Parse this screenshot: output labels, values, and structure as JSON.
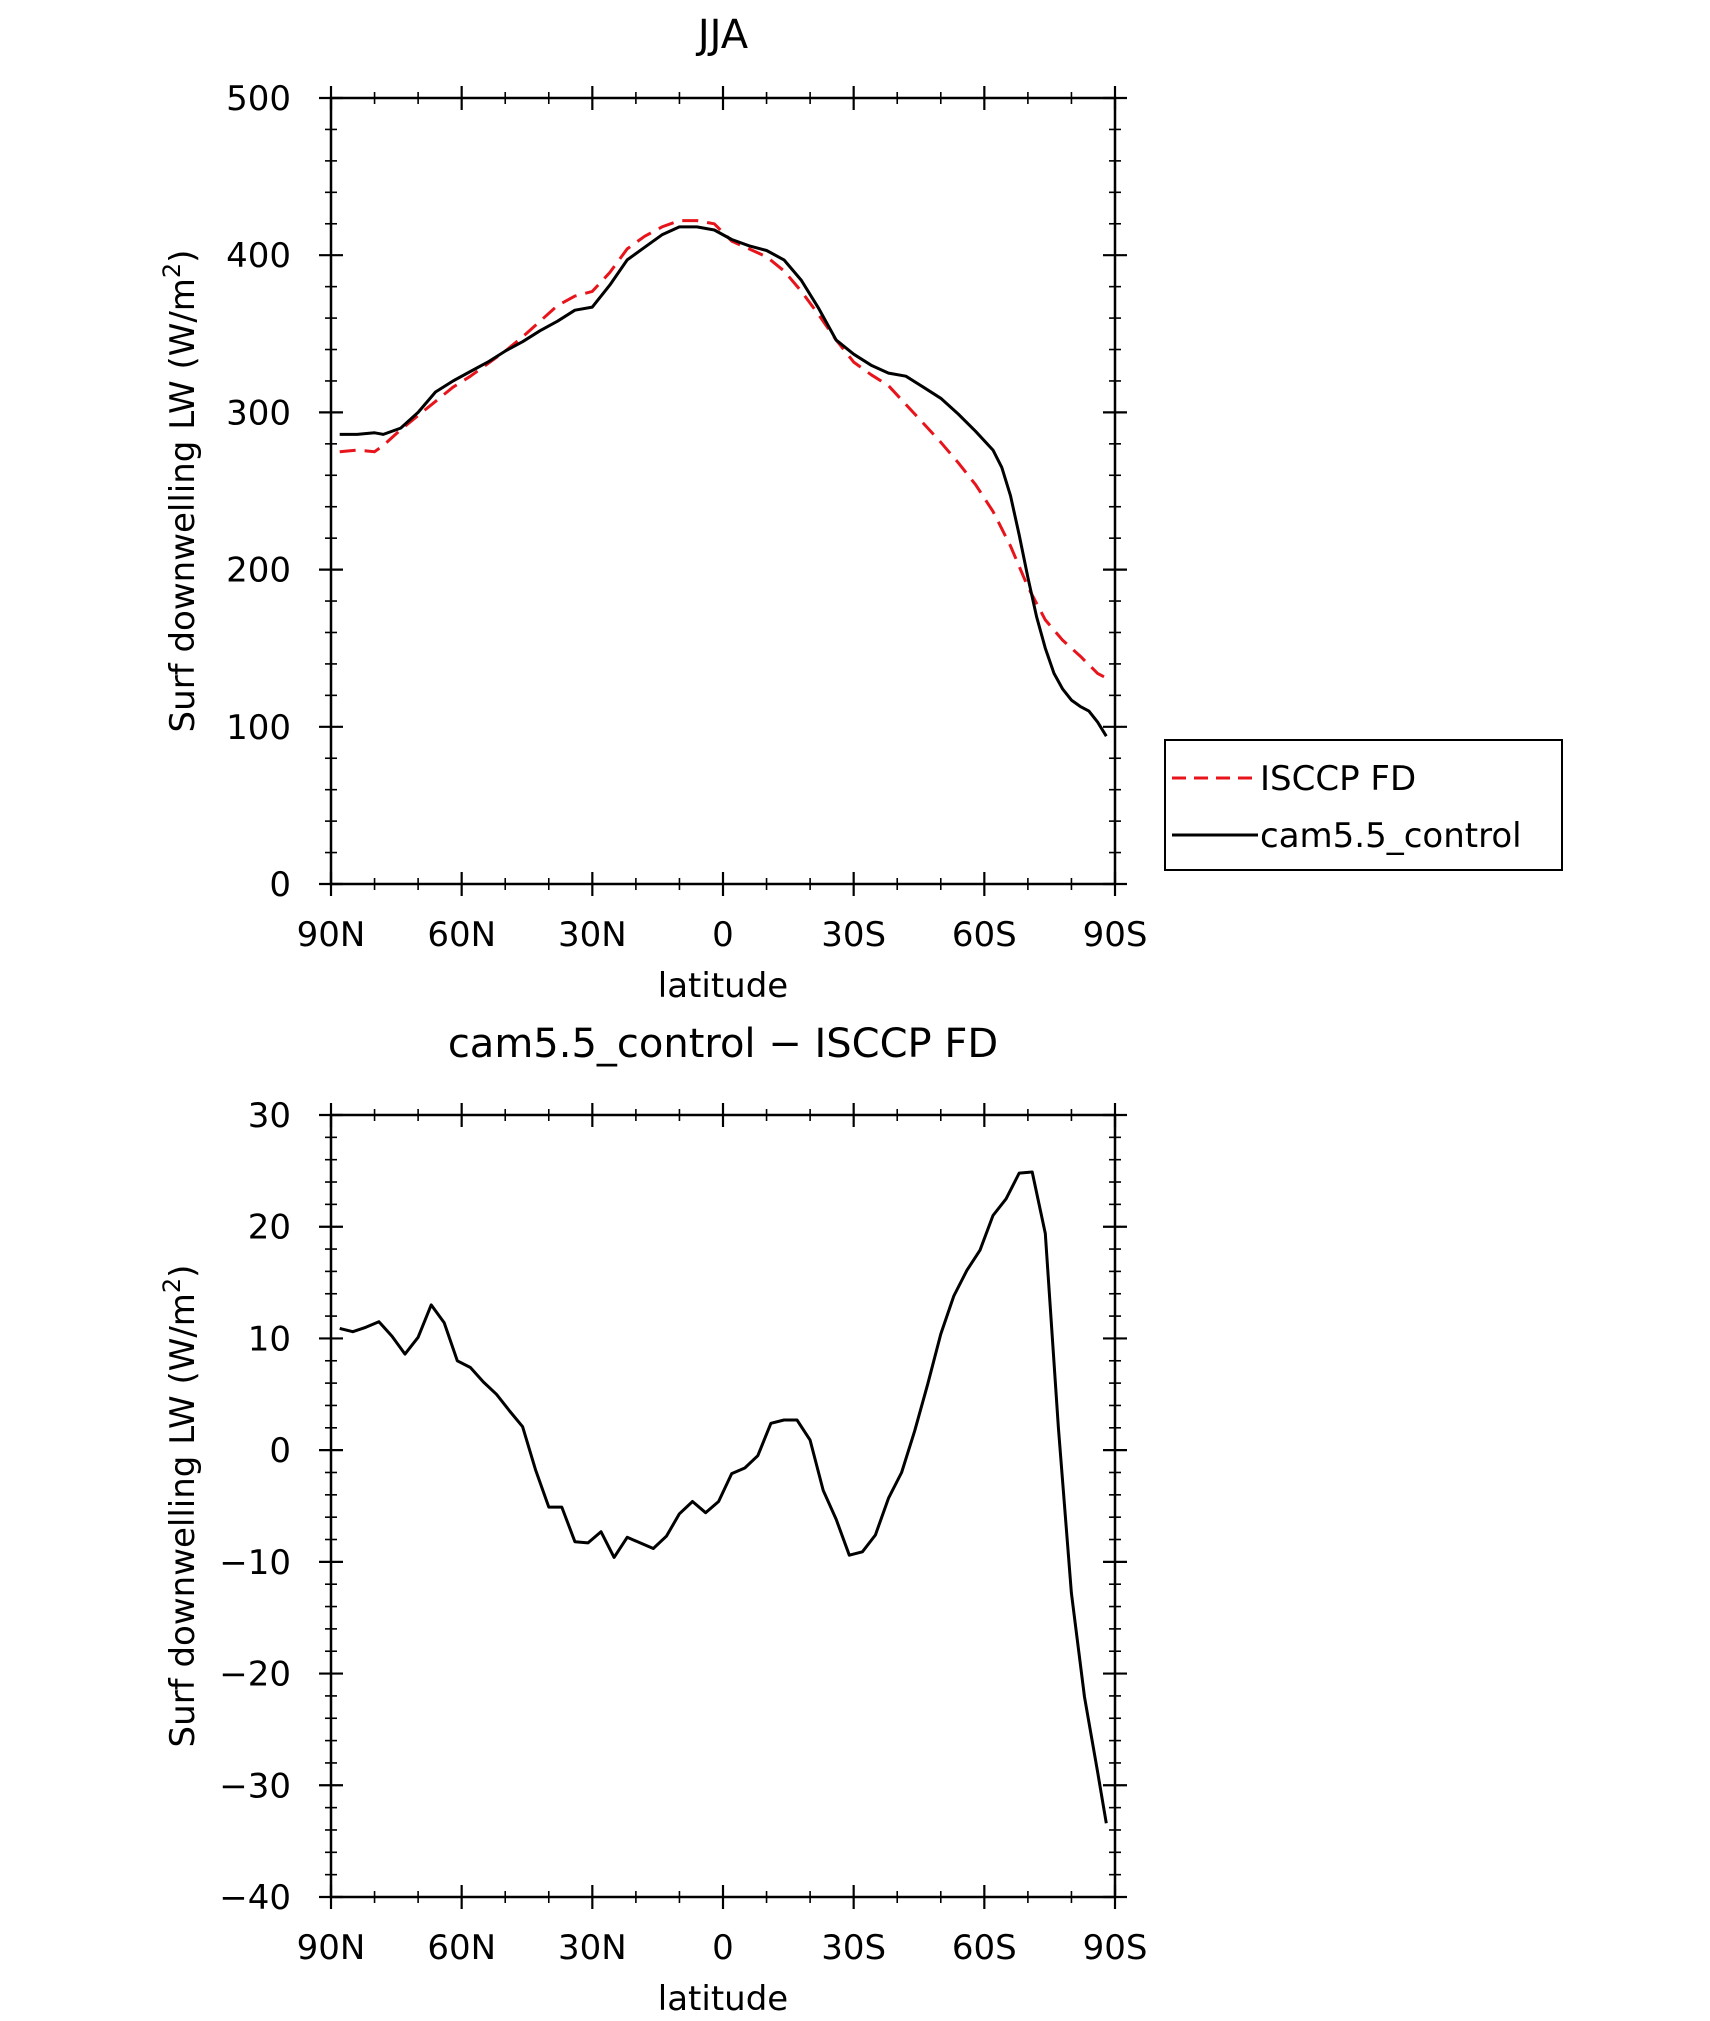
{
  "chart_data": [
    {
      "type": "line",
      "title": "JJA",
      "xlabel": "latitude",
      "ylabel": "Surf downwelling LW (W/m²)",
      "ylabel_main": "Surf downwelling LW (W/m",
      "ylabel_sup": "2",
      "ylabel_close": ")",
      "xlim": [
        90,
        -90
      ],
      "ylim": [
        0,
        500
      ],
      "x_ticks": [
        {
          "value": 90,
          "label": "90N"
        },
        {
          "value": 60,
          "label": "60N"
        },
        {
          "value": 30,
          "label": "30N"
        },
        {
          "value": 0,
          "label": "0"
        },
        {
          "value": -30,
          "label": "30S"
        },
        {
          "value": -60,
          "label": "60S"
        },
        {
          "value": -90,
          "label": "90S"
        }
      ],
      "y_ticks": [
        {
          "value": 0,
          "label": "0"
        },
        {
          "value": 100,
          "label": "100"
        },
        {
          "value": 200,
          "label": "200"
        },
        {
          "value": 300,
          "label": "300"
        },
        {
          "value": 400,
          "label": "400"
        },
        {
          "value": 500,
          "label": "500"
        }
      ],
      "grid": false,
      "legend_position": "right",
      "series": [
        {
          "name": "ISCCP FD",
          "color": "#e8141b",
          "style": "dashed",
          "x": [
            88,
            84,
            80,
            78,
            74,
            70,
            66,
            62,
            58,
            54,
            50,
            46,
            42,
            38,
            34,
            30,
            26,
            22,
            18,
            14,
            10,
            6,
            2,
            -2,
            -6,
            -10,
            -14,
            -18,
            -22,
            -26,
            -30,
            -34,
            -38,
            -42,
            -46,
            -50,
            -54,
            -58,
            -62,
            -66,
            -70,
            -74,
            -78,
            -82,
            -86,
            -88
          ],
          "y": [
            275,
            276,
            275,
            279,
            289,
            298,
            307,
            316,
            323,
            331,
            339,
            348,
            358,
            368,
            374,
            377,
            389,
            404,
            412,
            418,
            422,
            422,
            420,
            409,
            404,
            399,
            390,
            377,
            362,
            346,
            332,
            324,
            317,
            305,
            293,
            281,
            268,
            254,
            237,
            215,
            189,
            168,
            155,
            145,
            134,
            131
          ]
        },
        {
          "name": "cam5.5_control",
          "color": "#000000",
          "style": "solid",
          "x": [
            88,
            84,
            80,
            78,
            74,
            70,
            66,
            62,
            58,
            54,
            50,
            46,
            42,
            38,
            34,
            30,
            26,
            22,
            18,
            14,
            10,
            6,
            2,
            -2,
            -6,
            -10,
            -14,
            -18,
            -22,
            -26,
            -30,
            -34,
            -38,
            -42,
            -46,
            -50,
            -54,
            -58,
            -62,
            -64,
            -66,
            -68,
            -70,
            -72,
            -74,
            -76,
            -78,
            -80,
            -82,
            -84,
            -86,
            -88
          ],
          "y": [
            286,
            286,
            287,
            286,
            290,
            300,
            313,
            320,
            326,
            332,
            339,
            345,
            352,
            358,
            365,
            367,
            381,
            397,
            405,
            413,
            418,
            418,
            416,
            410,
            406,
            403,
            397,
            384,
            366,
            346,
            337,
            330,
            325,
            323,
            316,
            309,
            299,
            288,
            276,
            265,
            247,
            222,
            195,
            170,
            150,
            134,
            124,
            117,
            113,
            110,
            103,
            94
          ]
        }
      ]
    },
    {
      "type": "line",
      "title": "cam5.5_control − ISCCP FD",
      "xlabel": "latitude",
      "ylabel": "Surf downwelling LW (W/m²)",
      "ylabel_main": "Surf downwelling LW (W/m",
      "ylabel_sup": "2",
      "ylabel_close": ")",
      "xlim": [
        90,
        -90
      ],
      "ylim": [
        -40,
        30
      ],
      "x_ticks": [
        {
          "value": 90,
          "label": "90N"
        },
        {
          "value": 60,
          "label": "60N"
        },
        {
          "value": 30,
          "label": "30N"
        },
        {
          "value": 0,
          "label": "0"
        },
        {
          "value": -30,
          "label": "30S"
        },
        {
          "value": -60,
          "label": "60S"
        },
        {
          "value": -90,
          "label": "90S"
        }
      ],
      "y_ticks": [
        {
          "value": -40,
          "label": "−40"
        },
        {
          "value": -30,
          "label": "−30"
        },
        {
          "value": -20,
          "label": "−20"
        },
        {
          "value": -10,
          "label": "−10"
        },
        {
          "value": 0,
          "label": "0"
        },
        {
          "value": 10,
          "label": "10"
        },
        {
          "value": 20,
          "label": "20"
        },
        {
          "value": 30,
          "label": "30"
        }
      ],
      "grid": false,
      "series": [
        {
          "name": "cam5.5_control − ISCCP FD",
          "color": "#000000",
          "style": "solid",
          "x": [
            88,
            85,
            82,
            79,
            76,
            73,
            70,
            67,
            64,
            61,
            58,
            55,
            52,
            49,
            46,
            43,
            40,
            37,
            34,
            31,
            28,
            25,
            22,
            19,
            16,
            13,
            10,
            7,
            4,
            1,
            -2,
            -5,
            -8,
            -11,
            -14,
            -17,
            -20,
            -23,
            -26,
            -29,
            -32,
            -35,
            -38,
            -41,
            -44,
            -47,
            -50,
            -53,
            -56,
            -59,
            -62,
            -65,
            -68,
            -71,
            -74,
            -77,
            -80,
            -83,
            -86,
            -88
          ],
          "y": [
            10.9,
            10.6,
            11.0,
            11.5,
            10.2,
            8.6,
            10.1,
            13.0,
            11.4,
            8.0,
            7.4,
            6.1,
            5.0,
            3.5,
            2.1,
            -1.8,
            -5.1,
            -5.1,
            -8.2,
            -8.3,
            -7.3,
            -9.6,
            -7.8,
            -8.3,
            -8.8,
            -7.7,
            -5.7,
            -4.6,
            -5.6,
            -4.6,
            -2.1,
            -1.6,
            -0.5,
            2.4,
            2.7,
            2.7,
            0.9,
            -3.6,
            -6.2,
            -9.4,
            -9.1,
            -7.6,
            -4.3,
            -2.0,
            1.7,
            5.9,
            10.4,
            13.8,
            16.1,
            17.9,
            21.0,
            22.5,
            24.8,
            24.9,
            19.4,
            2.0,
            -12.8,
            -22.1,
            -28.8,
            -33.4
          ]
        }
      ]
    }
  ]
}
